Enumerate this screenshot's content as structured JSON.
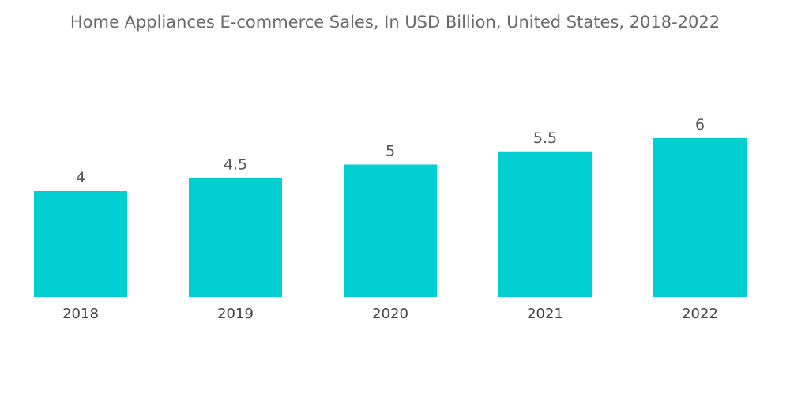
{
  "chart_data": {
    "type": "bar",
    "title": "Home Appliances E-commerce Sales, In USD Billion, United States, 2018-2022",
    "categories": [
      "2018",
      "2019",
      "2020",
      "2021",
      "2022"
    ],
    "values": [
      4,
      4.5,
      5,
      5.5,
      6
    ],
    "value_labels": [
      "4",
      "4.5",
      "5",
      "5.5",
      "6"
    ],
    "xlabel": "",
    "ylabel": "",
    "ylim": [
      0,
      8.2
    ],
    "grid": false,
    "legend": "none",
    "bar_color": "#00ced1"
  }
}
